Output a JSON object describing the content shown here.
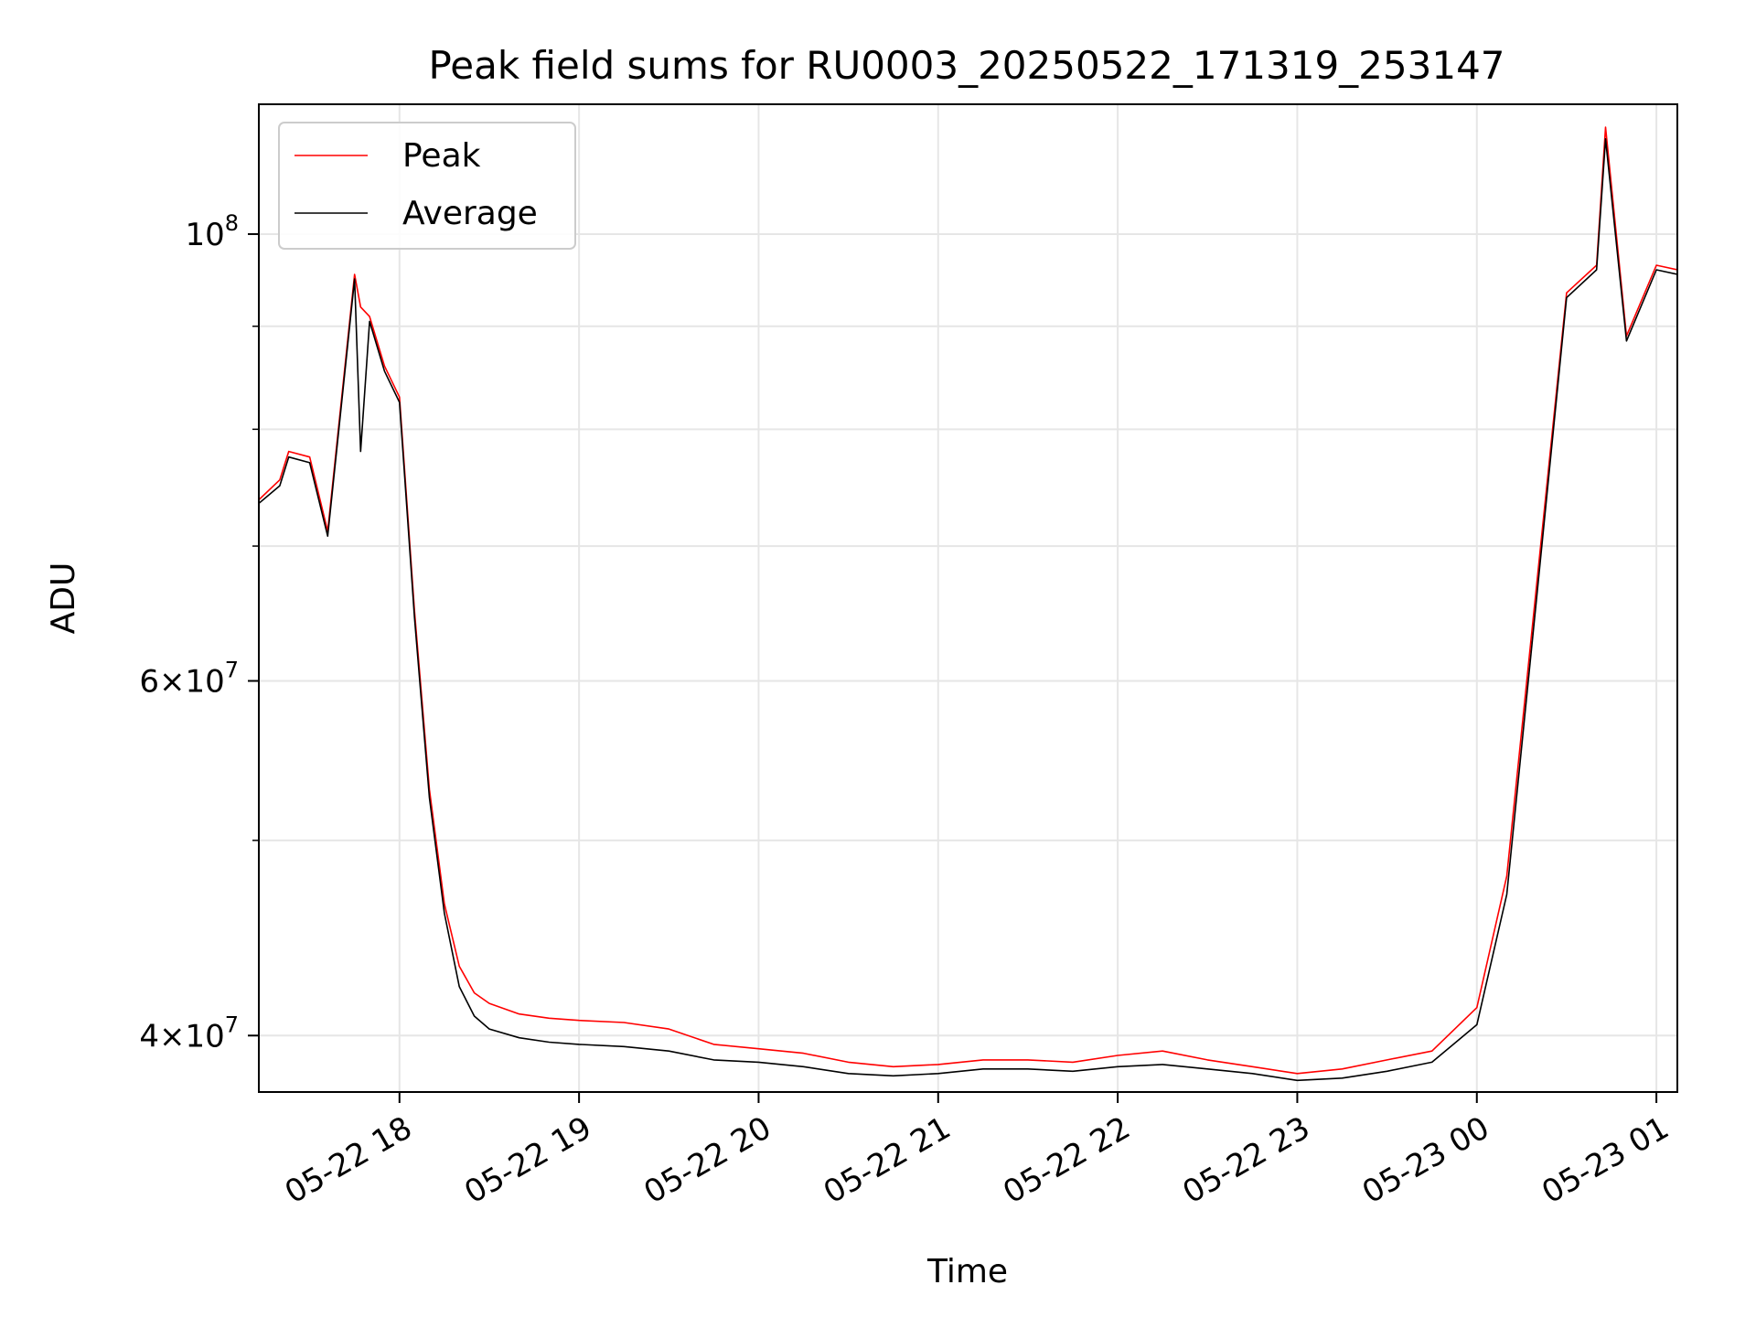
{
  "chart_data": {
    "type": "line",
    "title": "Peak field sums for RU0003_20250522_171319_253147",
    "xlabel": "Time",
    "ylabel": "ADU",
    "y_scale": "log",
    "xlim": [
      "2025-05-22 17:13",
      "2025-05-23 01:07"
    ],
    "ylim": [
      37500000,
      116000000
    ],
    "grid": true,
    "legend_position": "top-left",
    "x_ticks": [
      "2025-05-22 18:00",
      "2025-05-22 19:00",
      "2025-05-22 20:00",
      "2025-05-22 21:00",
      "2025-05-22 22:00",
      "2025-05-22 23:00",
      "2025-05-23 00:00",
      "2025-05-23 01:00"
    ],
    "x_tick_labels": [
      "05-22 18",
      "05-22 19",
      "05-22 20",
      "05-22 21",
      "05-22 22",
      "05-22 23",
      "05-23 00",
      "05-23 01"
    ],
    "y_ticks": [
      {
        "value": 100000000,
        "mantissa": "",
        "exponent": "8"
      },
      {
        "value": 60000000,
        "mantissa": "6",
        "exponent": "7"
      },
      {
        "value": 40000000,
        "mantissa": "4",
        "exponent": "7"
      }
    ],
    "y_minor_ticks": [
      50000000,
      70000000,
      80000000,
      90000000
    ],
    "series": [
      {
        "name": "Peak",
        "color": "#ff0000",
        "x": [
          "2025-05-22 17:13",
          "2025-05-22 17:20",
          "2025-05-22 17:23",
          "2025-05-22 17:30",
          "2025-05-22 17:36",
          "2025-05-22 17:45",
          "2025-05-22 17:47",
          "2025-05-22 17:50",
          "2025-05-22 17:55",
          "2025-05-22 18:00",
          "2025-05-22 18:05",
          "2025-05-22 18:10",
          "2025-05-22 18:15",
          "2025-05-22 18:20",
          "2025-05-22 18:25",
          "2025-05-22 18:30",
          "2025-05-22 18:40",
          "2025-05-22 18:50",
          "2025-05-22 19:00",
          "2025-05-22 19:15",
          "2025-05-22 19:30",
          "2025-05-22 19:45",
          "2025-05-22 20:00",
          "2025-05-22 20:15",
          "2025-05-22 20:30",
          "2025-05-22 20:45",
          "2025-05-22 21:00",
          "2025-05-22 21:15",
          "2025-05-22 21:30",
          "2025-05-22 21:45",
          "2025-05-22 22:00",
          "2025-05-22 22:15",
          "2025-05-22 22:30",
          "2025-05-22 22:45",
          "2025-05-22 23:00",
          "2025-05-22 23:15",
          "2025-05-22 23:30",
          "2025-05-22 23:45",
          "2025-05-23 00:00",
          "2025-05-23 00:10",
          "2025-05-23 00:20",
          "2025-05-23 00:30",
          "2025-05-23 00:40",
          "2025-05-23 00:43",
          "2025-05-23 00:50",
          "2025-05-23 01:00",
          "2025-05-23 01:07"
        ],
        "values": [
          73800000,
          75500000,
          78000000,
          77500000,
          71200000,
          95500000,
          92000000,
          91000000,
          86000000,
          83000000,
          65000000,
          53000000,
          46500000,
          43300000,
          42000000,
          41500000,
          41000000,
          40800000,
          40700000,
          40600000,
          40300000,
          39600000,
          39400000,
          39200000,
          38800000,
          38600000,
          38700000,
          38900000,
          38900000,
          38800000,
          39100000,
          39300000,
          38900000,
          38600000,
          38300000,
          38500000,
          38900000,
          39300000,
          41300000,
          48000000,
          67000000,
          93500000,
          96500000,
          113000000,
          89000000,
          96500000,
          96000000
        ]
      },
      {
        "name": "Average",
        "color": "#000000",
        "x": [
          "2025-05-22 17:13",
          "2025-05-22 17:20",
          "2025-05-22 17:23",
          "2025-05-22 17:30",
          "2025-05-22 17:36",
          "2025-05-22 17:45",
          "2025-05-22 17:47",
          "2025-05-22 17:50",
          "2025-05-22 17:55",
          "2025-05-22 18:00",
          "2025-05-22 18:05",
          "2025-05-22 18:10",
          "2025-05-22 18:15",
          "2025-05-22 18:20",
          "2025-05-22 18:25",
          "2025-05-22 18:30",
          "2025-05-22 18:40",
          "2025-05-22 18:50",
          "2025-05-22 19:00",
          "2025-05-22 19:15",
          "2025-05-22 19:30",
          "2025-05-22 19:45",
          "2025-05-22 20:00",
          "2025-05-22 20:15",
          "2025-05-22 20:30",
          "2025-05-22 20:45",
          "2025-05-22 21:00",
          "2025-05-22 21:15",
          "2025-05-22 21:30",
          "2025-05-22 21:45",
          "2025-05-22 22:00",
          "2025-05-22 22:15",
          "2025-05-22 22:30",
          "2025-05-22 22:45",
          "2025-05-22 23:00",
          "2025-05-22 23:15",
          "2025-05-22 23:30",
          "2025-05-22 23:45",
          "2025-05-23 00:00",
          "2025-05-23 00:10",
          "2025-05-23 00:20",
          "2025-05-23 00:30",
          "2025-05-23 00:40",
          "2025-05-23 00:43",
          "2025-05-23 00:50",
          "2025-05-23 01:00",
          "2025-05-23 01:07"
        ],
        "values": [
          73500000,
          75000000,
          77500000,
          77000000,
          70800000,
          95000000,
          78000000,
          90500000,
          85500000,
          82500000,
          64500000,
          52500000,
          46000000,
          42300000,
          40900000,
          40300000,
          39900000,
          39700000,
          39600000,
          39500000,
          39300000,
          38900000,
          38800000,
          38600000,
          38300000,
          38200000,
          38300000,
          38500000,
          38500000,
          38400000,
          38600000,
          38700000,
          38500000,
          38300000,
          38000000,
          38100000,
          38400000,
          38800000,
          40500000,
          47000000,
          66000000,
          93000000,
          96000000,
          111500000,
          88500000,
          96000000,
          95500000
        ]
      }
    ]
  }
}
